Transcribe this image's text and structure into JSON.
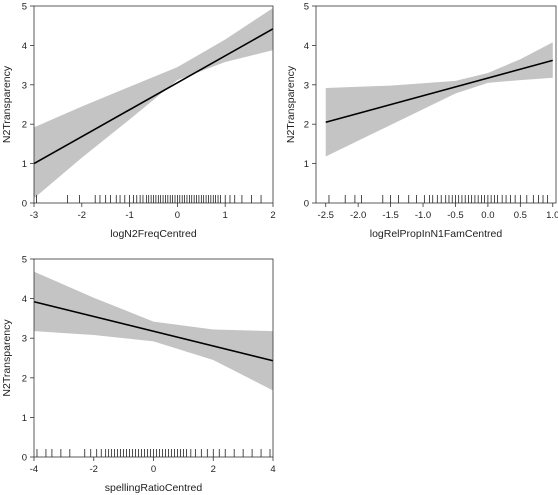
{
  "chart_data": [
    {
      "type": "line",
      "xlabel": "logN2FreqCentred",
      "ylabel": "N2Transparency",
      "xlim": [
        -3,
        2
      ],
      "ylim": [
        0,
        5
      ],
      "xticks": [
        "-3",
        "-2",
        "-1",
        "0",
        "1",
        "2"
      ],
      "yticks": [
        "0",
        "1",
        "2",
        "3",
        "4",
        "5"
      ],
      "line": {
        "x": [
          -3,
          2
        ],
        "y": [
          1.0,
          4.42
        ]
      },
      "band": {
        "x": [
          -3,
          -2,
          -1,
          0,
          1,
          2
        ],
        "upper": [
          1.92,
          2.45,
          2.95,
          3.45,
          4.15,
          4.95
        ],
        "lower": [
          0.12,
          1.15,
          2.12,
          3.12,
          3.58,
          3.88
        ]
      },
      "rug": [
        -2.95,
        -2.3,
        -2.05,
        -1.72,
        -1.62,
        -1.5,
        -1.4,
        -1.28,
        -1.2,
        -1.1,
        -1.0,
        -0.92,
        -0.85,
        -0.78,
        -0.72,
        -0.65,
        -0.6,
        -0.55,
        -0.5,
        -0.45,
        -0.4,
        -0.35,
        -0.3,
        -0.25,
        -0.2,
        -0.15,
        -0.1,
        -0.05,
        0.0,
        0.05,
        0.1,
        0.15,
        0.2,
        0.25,
        0.3,
        0.35,
        0.4,
        0.45,
        0.5,
        0.55,
        0.6,
        0.65,
        0.7,
        0.75,
        0.8,
        0.85,
        0.9,
        1.0,
        1.1,
        1.2,
        1.35,
        1.55,
        1.75
      ]
    },
    {
      "type": "line",
      "xlabel": "logRelPropInN1FamCentred",
      "ylabel": "N2Transparency",
      "xlim": [
        -2.65,
        1.05
      ],
      "ylim": [
        0,
        5
      ],
      "xticks": [
        "-2.5",
        "-2.0",
        "-1.5",
        "-1.0",
        "-0.5",
        "0.0",
        "0.5",
        "1.0"
      ],
      "yticks": [
        "0",
        "1",
        "2",
        "3",
        "4",
        "5"
      ],
      "line": {
        "x": [
          -2.5,
          1.0
        ],
        "y": [
          2.05,
          3.62
        ]
      },
      "band": {
        "x": [
          -2.5,
          -1.5,
          -0.5,
          0.0,
          0.5,
          1.0
        ],
        "upper": [
          2.92,
          2.98,
          3.1,
          3.3,
          3.65,
          4.08
        ],
        "lower": [
          1.18,
          1.98,
          2.78,
          3.05,
          3.12,
          3.18
        ]
      },
      "rug": [
        -2.45,
        -2.2,
        -2.05,
        -1.95,
        -1.62,
        -1.5,
        -1.38,
        -1.22,
        -1.1,
        -0.98,
        -0.9,
        -0.85,
        -0.78,
        -0.72,
        -0.65,
        -0.6,
        -0.55,
        -0.5,
        -0.45,
        -0.4,
        -0.35,
        -0.3,
        -0.25,
        -0.2,
        -0.15,
        -0.1,
        -0.05,
        0.0,
        0.05,
        0.1,
        0.15,
        0.22,
        0.28,
        0.35,
        0.42,
        0.5,
        0.6,
        0.7,
        0.78,
        0.85,
        0.92
      ]
    },
    {
      "type": "line",
      "xlabel": "spellingRatioCentred",
      "ylabel": "N2Transparency",
      "xlim": [
        -4,
        4
      ],
      "ylim": [
        0,
        5
      ],
      "xticks": [
        "-4",
        "-2",
        "0",
        "2",
        "4"
      ],
      "yticks": [
        "0",
        "1",
        "2",
        "3",
        "4",
        "5"
      ],
      "line": {
        "x": [
          -4,
          4
        ],
        "y": [
          3.92,
          2.43
        ]
      },
      "band": {
        "x": [
          -4,
          -2,
          0,
          2,
          4
        ],
        "upper": [
          4.68,
          4.02,
          3.42,
          3.22,
          3.18
        ],
        "lower": [
          3.18,
          3.08,
          2.92,
          2.45,
          1.68
        ]
      },
      "rug": [
        -3.9,
        -3.6,
        -3.4,
        -3.1,
        -2.8,
        -2.3,
        -2.1,
        -1.9,
        -1.75,
        -1.6,
        -1.5,
        -1.4,
        -1.3,
        -1.2,
        -1.1,
        -1.0,
        -0.9,
        -0.8,
        -0.7,
        -0.6,
        -0.5,
        -0.4,
        -0.3,
        -0.2,
        -0.1,
        0.0,
        0.1,
        0.2,
        0.3,
        0.4,
        0.5,
        0.6,
        0.7,
        0.8,
        0.9,
        1.0,
        1.1,
        1.25,
        1.4,
        1.6,
        1.8,
        2.0,
        2.2,
        2.4,
        2.7,
        3.0,
        3.3,
        3.6,
        3.9
      ]
    }
  ]
}
